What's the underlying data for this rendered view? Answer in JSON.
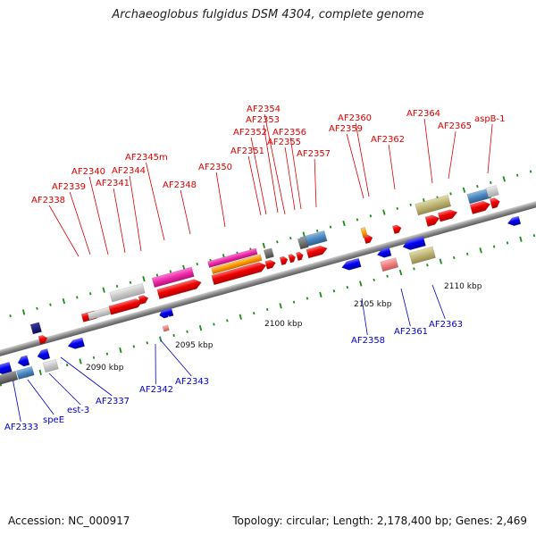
{
  "title": "Archaeoglobus fulgidus DSM 4304, complete genome",
  "accession": "Accession: NC_000917",
  "topology": "Topology: circular; Length: 2,178,400 bp; Genes: 2,469",
  "scale_labels": [
    "2090 kbp",
    "2095 kbp",
    "2100 kbp",
    "2105 kbp",
    "2110 kbp"
  ],
  "top_labels": [
    "AF2338",
    "AF2339",
    "AF2340",
    "AF2341",
    "AF2344",
    "AF2345m",
    "AF2348",
    "AF2350",
    "AF2351",
    "AF2352",
    "AF2353",
    "AF2354",
    "AF2355",
    "AF2356",
    "AF2357",
    "AF2359",
    "AF2360",
    "AF2362",
    "AF2364",
    "AF2365",
    "aspB-1"
  ],
  "bottom_labels": [
    "AF2333",
    "speE",
    "est-3",
    "AF2337",
    "AF2342",
    "AF2343",
    "AF2358",
    "AF2361",
    "AF2363"
  ],
  "colors": {
    "top_label": "#dd0000",
    "bottom_label": "#0000cc",
    "backbone": "#8c8c8c",
    "gene_forward": "#ee0000",
    "gene_reverse": "#0000ee",
    "tick": "#1a8c1a"
  }
}
